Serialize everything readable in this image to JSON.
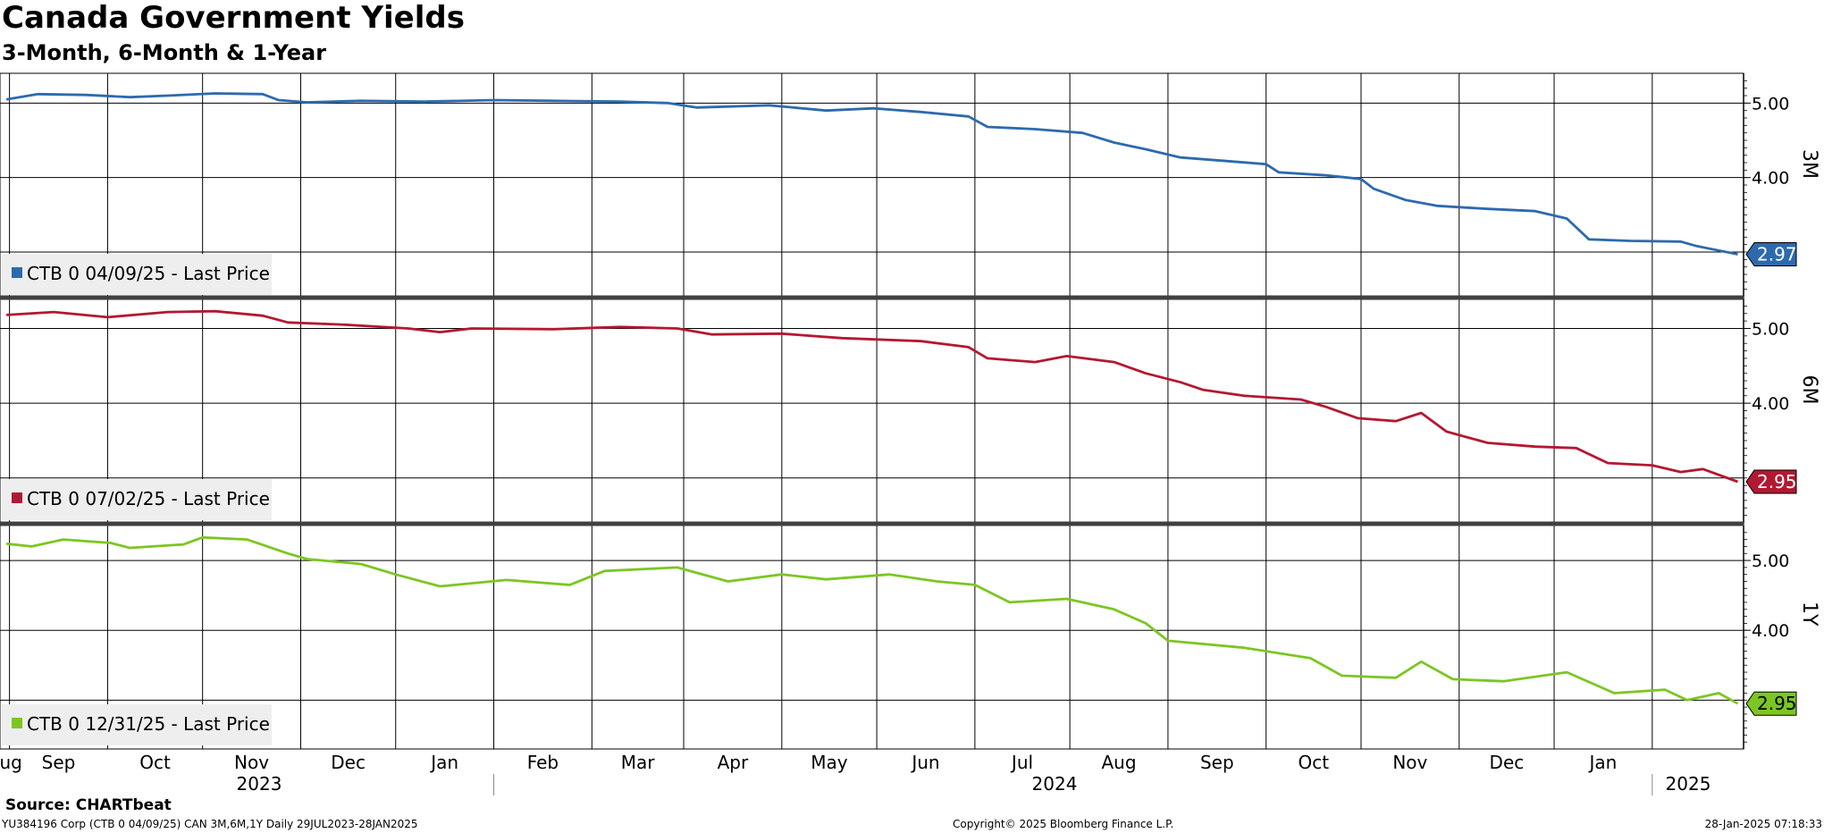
{
  "header": {
    "title": "Canada Government Yields",
    "subtitle": "3-Month, 6-Month & 1-Year"
  },
  "footer": {
    "source": "Source: CHARTbeat",
    "left": "YU384196 Corp (CTB 0 04/09/25) CAN 3M,6M,1Y  Daily 29JUL2023-28JAN2025",
    "center": "Copyright© 2025 Bloomberg Finance L.P.",
    "right": "28-Jan-2025 07:18:33"
  },
  "chart_data": {
    "type": "line",
    "x_axis": {
      "months": [
        "Aug",
        "Sep",
        "Oct",
        "Nov",
        "Dec",
        "Jan",
        "Feb",
        "Mar",
        "Apr",
        "May",
        "Jun",
        "Jul",
        "Aug",
        "Sep",
        "Oct",
        "Nov",
        "Dec",
        "Jan"
      ],
      "years": [
        "2023",
        "2024",
        "2025"
      ]
    },
    "grid": true,
    "panels": [
      {
        "axis_label": "3M",
        "ylim": [
          2.4,
          5.4
        ],
        "ticks": [
          "5.00",
          "4.00"
        ],
        "color": "#2d6aad",
        "legend": "CTB 0 04/09/25 - Last Price",
        "last_value": "2.97",
        "series": [
          {
            "date": "2023-07-31",
            "value": 5.05
          },
          {
            "date": "2023-08-10",
            "value": 5.12
          },
          {
            "date": "2023-08-25",
            "value": 5.11
          },
          {
            "date": "2023-09-08",
            "value": 5.08
          },
          {
            "date": "2023-09-20",
            "value": 5.1
          },
          {
            "date": "2023-10-05",
            "value": 5.13
          },
          {
            "date": "2023-10-20",
            "value": 5.12
          },
          {
            "date": "2023-10-25",
            "value": 5.04
          },
          {
            "date": "2023-11-03",
            "value": 5.01
          },
          {
            "date": "2023-11-20",
            "value": 5.03
          },
          {
            "date": "2023-12-10",
            "value": 5.02
          },
          {
            "date": "2024-01-01",
            "value": 5.04
          },
          {
            "date": "2024-01-20",
            "value": 5.03
          },
          {
            "date": "2024-02-10",
            "value": 5.02
          },
          {
            "date": "2024-02-25",
            "value": 5.0
          },
          {
            "date": "2024-03-05",
            "value": 4.94
          },
          {
            "date": "2024-03-28",
            "value": 4.97
          },
          {
            "date": "2024-04-15",
            "value": 4.9
          },
          {
            "date": "2024-04-30",
            "value": 4.93
          },
          {
            "date": "2024-05-15",
            "value": 4.88
          },
          {
            "date": "2024-05-30",
            "value": 4.82
          },
          {
            "date": "2024-06-05",
            "value": 4.68
          },
          {
            "date": "2024-06-20",
            "value": 4.65
          },
          {
            "date": "2024-07-05",
            "value": 4.6
          },
          {
            "date": "2024-07-15",
            "value": 4.47
          },
          {
            "date": "2024-07-25",
            "value": 4.38
          },
          {
            "date": "2024-08-05",
            "value": 4.27
          },
          {
            "date": "2024-08-20",
            "value": 4.22
          },
          {
            "date": "2024-09-01",
            "value": 4.18
          },
          {
            "date": "2024-09-05",
            "value": 4.07
          },
          {
            "date": "2024-09-20",
            "value": 4.03
          },
          {
            "date": "2024-10-01",
            "value": 3.98
          },
          {
            "date": "2024-10-05",
            "value": 3.85
          },
          {
            "date": "2024-10-15",
            "value": 3.7
          },
          {
            "date": "2024-10-25",
            "value": 3.62
          },
          {
            "date": "2024-11-10",
            "value": 3.58
          },
          {
            "date": "2024-11-25",
            "value": 3.55
          },
          {
            "date": "2024-12-05",
            "value": 3.45
          },
          {
            "date": "2024-12-12",
            "value": 3.17
          },
          {
            "date": "2024-12-25",
            "value": 3.15
          },
          {
            "date": "2025-01-10",
            "value": 3.14
          },
          {
            "date": "2025-01-15",
            "value": 3.08
          },
          {
            "date": "2025-01-28",
            "value": 2.97
          }
        ]
      },
      {
        "axis_label": "6M",
        "ylim": [
          2.4,
          5.4
        ],
        "ticks": [
          "5.00",
          "4.00"
        ],
        "color": "#b31832",
        "legend": "CTB 0 07/02/25 - Last Price",
        "last_value": "2.95",
        "series": [
          {
            "date": "2023-07-31",
            "value": 5.18
          },
          {
            "date": "2023-08-15",
            "value": 5.22
          },
          {
            "date": "2023-09-01",
            "value": 5.15
          },
          {
            "date": "2023-09-20",
            "value": 5.22
          },
          {
            "date": "2023-10-05",
            "value": 5.23
          },
          {
            "date": "2023-10-20",
            "value": 5.17
          },
          {
            "date": "2023-10-28",
            "value": 5.08
          },
          {
            "date": "2023-11-15",
            "value": 5.05
          },
          {
            "date": "2023-12-05",
            "value": 5.0
          },
          {
            "date": "2023-12-15",
            "value": 4.95
          },
          {
            "date": "2023-12-25",
            "value": 5.0
          },
          {
            "date": "2024-01-20",
            "value": 4.99
          },
          {
            "date": "2024-02-10",
            "value": 5.02
          },
          {
            "date": "2024-02-28",
            "value": 5.0
          },
          {
            "date": "2024-03-10",
            "value": 4.92
          },
          {
            "date": "2024-04-01",
            "value": 4.93
          },
          {
            "date": "2024-04-20",
            "value": 4.87
          },
          {
            "date": "2024-05-15",
            "value": 4.83
          },
          {
            "date": "2024-05-30",
            "value": 4.75
          },
          {
            "date": "2024-06-05",
            "value": 4.6
          },
          {
            "date": "2024-06-20",
            "value": 4.55
          },
          {
            "date": "2024-06-30",
            "value": 4.63
          },
          {
            "date": "2024-07-15",
            "value": 4.55
          },
          {
            "date": "2024-07-25",
            "value": 4.4
          },
          {
            "date": "2024-08-05",
            "value": 4.28
          },
          {
            "date": "2024-08-12",
            "value": 4.18
          },
          {
            "date": "2024-08-25",
            "value": 4.1
          },
          {
            "date": "2024-09-12",
            "value": 4.05
          },
          {
            "date": "2024-09-20",
            "value": 3.95
          },
          {
            "date": "2024-09-30",
            "value": 3.8
          },
          {
            "date": "2024-10-12",
            "value": 3.76
          },
          {
            "date": "2024-10-20",
            "value": 3.87
          },
          {
            "date": "2024-10-28",
            "value": 3.62
          },
          {
            "date": "2024-11-10",
            "value": 3.47
          },
          {
            "date": "2024-11-25",
            "value": 3.42
          },
          {
            "date": "2024-12-08",
            "value": 3.4
          },
          {
            "date": "2024-12-18",
            "value": 3.2
          },
          {
            "date": "2025-01-01",
            "value": 3.17
          },
          {
            "date": "2025-01-10",
            "value": 3.08
          },
          {
            "date": "2025-01-17",
            "value": 3.12
          },
          {
            "date": "2025-01-28",
            "value": 2.95
          }
        ]
      },
      {
        "axis_label": "1Y",
        "ylim": [
          2.3,
          5.5
        ],
        "ticks": [
          "5.00",
          "4.00"
        ],
        "color": "#7cc623",
        "legend": "CTB 0 12/31/25 - Last Price",
        "last_value": "2.95",
        "series": [
          {
            "date": "2023-07-31",
            "value": 5.24
          },
          {
            "date": "2023-08-08",
            "value": 5.2
          },
          {
            "date": "2023-08-18",
            "value": 5.3
          },
          {
            "date": "2023-09-02",
            "value": 5.25
          },
          {
            "date": "2023-09-08",
            "value": 5.18
          },
          {
            "date": "2023-09-25",
            "value": 5.23
          },
          {
            "date": "2023-10-01",
            "value": 5.33
          },
          {
            "date": "2023-10-15",
            "value": 5.3
          },
          {
            "date": "2023-10-28",
            "value": 5.1
          },
          {
            "date": "2023-11-03",
            "value": 5.02
          },
          {
            "date": "2023-11-20",
            "value": 4.95
          },
          {
            "date": "2023-12-01",
            "value": 4.8
          },
          {
            "date": "2023-12-15",
            "value": 4.63
          },
          {
            "date": "2024-01-05",
            "value": 4.72
          },
          {
            "date": "2024-01-25",
            "value": 4.65
          },
          {
            "date": "2024-02-05",
            "value": 4.85
          },
          {
            "date": "2024-02-28",
            "value": 4.9
          },
          {
            "date": "2024-03-15",
            "value": 4.7
          },
          {
            "date": "2024-04-01",
            "value": 4.8
          },
          {
            "date": "2024-04-15",
            "value": 4.73
          },
          {
            "date": "2024-05-05",
            "value": 4.8
          },
          {
            "date": "2024-05-20",
            "value": 4.7
          },
          {
            "date": "2024-06-01",
            "value": 4.65
          },
          {
            "date": "2024-06-12",
            "value": 4.4
          },
          {
            "date": "2024-06-30",
            "value": 4.45
          },
          {
            "date": "2024-07-15",
            "value": 4.3
          },
          {
            "date": "2024-07-25",
            "value": 4.1
          },
          {
            "date": "2024-08-01",
            "value": 3.85
          },
          {
            "date": "2024-08-25",
            "value": 3.75
          },
          {
            "date": "2024-09-15",
            "value": 3.6
          },
          {
            "date": "2024-09-25",
            "value": 3.35
          },
          {
            "date": "2024-10-12",
            "value": 3.32
          },
          {
            "date": "2024-10-20",
            "value": 3.55
          },
          {
            "date": "2024-10-30",
            "value": 3.3
          },
          {
            "date": "2024-11-15",
            "value": 3.27
          },
          {
            "date": "2024-12-05",
            "value": 3.4
          },
          {
            "date": "2024-12-20",
            "value": 3.1
          },
          {
            "date": "2025-01-05",
            "value": 3.15
          },
          {
            "date": "2025-01-12",
            "value": 3.0
          },
          {
            "date": "2025-01-22",
            "value": 3.1
          },
          {
            "date": "2025-01-28",
            "value": 2.95
          }
        ]
      }
    ]
  }
}
